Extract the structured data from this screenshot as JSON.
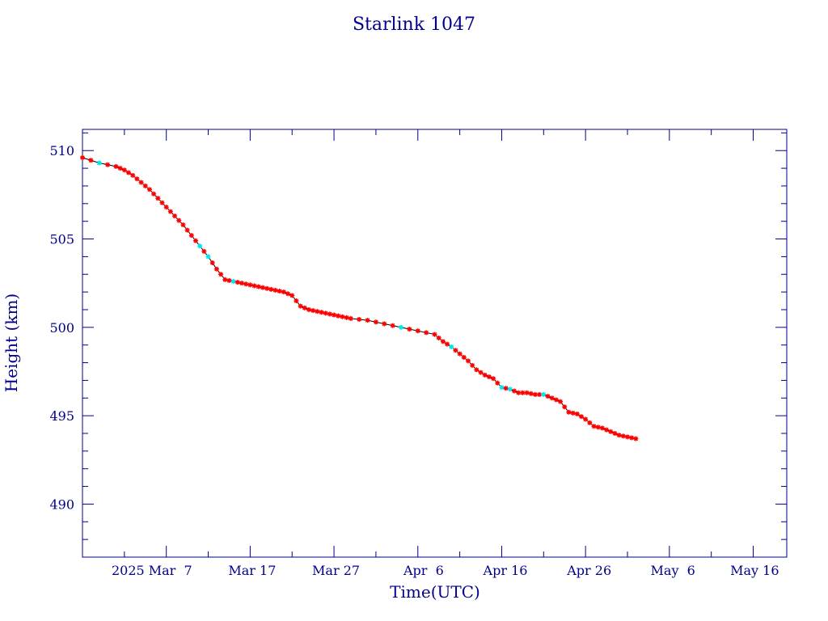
{
  "chart_data": {
    "type": "line",
    "title": "Starlink 1047",
    "xlabel": "Time(UTC)",
    "ylabel": "Height (km)",
    "x_domain": [
      "2025-02-25",
      "2025-05-20"
    ],
    "x_ticks": [
      {
        "date": "2025-03-07",
        "label": "2025 Mar  7"
      },
      {
        "date": "2025-03-17",
        "label": "Mar 17"
      },
      {
        "date": "2025-03-27",
        "label": "Mar 27"
      },
      {
        "date": "2025-04-06",
        "label": "Apr  6"
      },
      {
        "date": "2025-04-16",
        "label": "Apr 16"
      },
      {
        "date": "2025-04-26",
        "label": "Apr 26"
      },
      {
        "date": "2025-05-06",
        "label": "May  6"
      },
      {
        "date": "2025-05-16",
        "label": "May 16"
      }
    ],
    "ylim": [
      487,
      511.2
    ],
    "y_ticks": [
      490,
      495,
      500,
      505,
      510
    ],
    "colors": {
      "axes": "#00008b",
      "line": "#000000",
      "points": "#ff0000",
      "highlight_points": "#00e5ee"
    },
    "series": [
      {
        "points": [
          [
            "2025-02-25",
            509.6
          ],
          [
            "2025-02-27",
            509.3
          ],
          [
            "2025-03-01",
            509.1
          ],
          [
            "2025-03-02",
            508.9
          ],
          [
            "2025-03-03",
            508.6
          ],
          [
            "2025-03-04",
            508.2
          ],
          [
            "2025-03-05",
            507.8
          ],
          [
            "2025-03-06",
            507.3
          ],
          [
            "2025-03-07",
            506.8
          ],
          [
            "2025-03-08",
            506.3
          ],
          [
            "2025-03-09",
            505.8
          ],
          [
            "2025-03-10",
            505.2
          ],
          [
            "2025-03-11",
            504.6
          ],
          [
            "2025-03-12",
            504.0
          ],
          [
            "2025-03-13",
            503.3
          ],
          [
            "2025-03-14",
            502.7
          ],
          [
            "2025-03-15",
            502.6
          ],
          [
            "2025-03-16",
            502.5
          ],
          [
            "2025-03-17",
            502.4
          ],
          [
            "2025-03-18",
            502.3
          ],
          [
            "2025-03-19",
            502.2
          ],
          [
            "2025-03-20",
            502.1
          ],
          [
            "2025-03-21",
            502.0
          ],
          [
            "2025-03-22",
            501.8
          ],
          [
            "2025-03-23",
            501.2
          ],
          [
            "2025-03-24",
            501.0
          ],
          [
            "2025-03-25",
            500.9
          ],
          [
            "2025-03-26",
            500.8
          ],
          [
            "2025-03-27",
            500.7
          ],
          [
            "2025-03-28",
            500.6
          ],
          [
            "2025-03-29",
            500.5
          ],
          [
            "2025-03-31",
            500.4
          ],
          [
            "2025-04-02",
            500.2
          ],
          [
            "2025-04-04",
            500.0
          ],
          [
            "2025-04-06",
            499.8
          ],
          [
            "2025-04-08",
            499.6
          ],
          [
            "2025-04-09",
            499.2
          ],
          [
            "2025-04-10",
            498.9
          ],
          [
            "2025-04-11",
            498.5
          ],
          [
            "2025-04-12",
            498.1
          ],
          [
            "2025-04-13",
            497.6
          ],
          [
            "2025-04-14",
            497.3
          ],
          [
            "2025-04-15",
            497.1
          ],
          [
            "2025-04-16",
            496.6
          ],
          [
            "2025-04-17",
            496.5
          ],
          [
            "2025-04-18",
            496.3
          ],
          [
            "2025-04-19",
            496.3
          ],
          [
            "2025-04-20",
            496.2
          ],
          [
            "2025-04-21",
            496.2
          ],
          [
            "2025-04-22",
            496.0
          ],
          [
            "2025-04-23",
            495.8
          ],
          [
            "2025-04-24",
            495.2
          ],
          [
            "2025-04-25",
            495.1
          ],
          [
            "2025-04-26",
            494.8
          ],
          [
            "2025-04-27",
            494.4
          ],
          [
            "2025-04-28",
            494.3
          ],
          [
            "2025-04-29",
            494.1
          ],
          [
            "2025-04-30",
            493.9
          ],
          [
            "2025-05-01",
            493.8
          ],
          [
            "2025-05-02",
            493.7
          ]
        ],
        "highlight_dates": [
          "2025-02-27",
          "2025-03-11",
          "2025-03-12",
          "2025-03-15",
          "2025-04-04",
          "2025-04-10",
          "2025-04-16",
          "2025-04-17",
          "2025-04-21"
        ]
      }
    ]
  }
}
